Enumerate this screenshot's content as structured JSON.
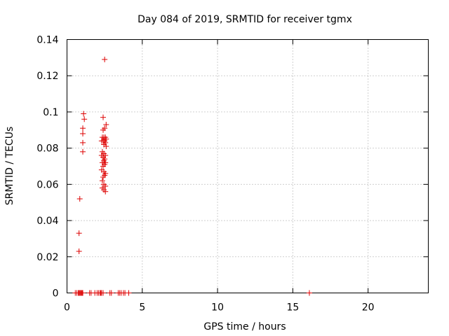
{
  "chart_data": {
    "type": "scatter",
    "title": "Day 084 of 2019, SRMTID for receiver tgmx",
    "xlabel": "GPS time / hours",
    "ylabel": "SRMTID / TECUs",
    "xlim": [
      0,
      24
    ],
    "ylim": [
      0,
      0.14
    ],
    "xticks": [
      0,
      5,
      10,
      15,
      20
    ],
    "xtick_labels": [
      "0",
      "5",
      "10",
      "15",
      "20"
    ],
    "yticks": [
      0,
      0.02,
      0.04,
      0.06,
      0.08,
      0.1,
      0.12,
      0.14
    ],
    "ytick_labels": [
      "0",
      "0.02",
      "0.04",
      "0.06",
      "0.08",
      "0.1",
      "0.12",
      "0.14"
    ],
    "grid": true,
    "marker": "+",
    "color": "#dd0000",
    "series": [
      {
        "points": [
          [
            0.55,
            0
          ],
          [
            0.65,
            0
          ],
          [
            0.75,
            0
          ],
          [
            0.8,
            0
          ],
          [
            0.85,
            0
          ],
          [
            0.9,
            0
          ],
          [
            0.95,
            0
          ],
          [
            1.0,
            0
          ],
          [
            1.05,
            0
          ],
          [
            1.5,
            0
          ],
          [
            1.6,
            0
          ],
          [
            1.85,
            0
          ],
          [
            2.0,
            0
          ],
          [
            2.1,
            0
          ],
          [
            2.2,
            0
          ],
          [
            2.25,
            0
          ],
          [
            2.3,
            0
          ],
          [
            2.4,
            0
          ],
          [
            2.85,
            0
          ],
          [
            2.95,
            0
          ],
          [
            3.4,
            0
          ],
          [
            3.5,
            0
          ],
          [
            3.6,
            0
          ],
          [
            3.75,
            0
          ],
          [
            3.85,
            0
          ],
          [
            4.1,
            0
          ],
          [
            16.1,
            0
          ],
          [
            0.8,
            0.023
          ],
          [
            0.8,
            0.033
          ],
          [
            0.85,
            0.052
          ],
          [
            1.05,
            0.078
          ],
          [
            1.05,
            0.083
          ],
          [
            1.05,
            0.088
          ],
          [
            1.05,
            0.091
          ],
          [
            1.15,
            0.096
          ],
          [
            1.1,
            0.099
          ],
          [
            2.5,
            0.129
          ],
          [
            2.4,
            0.097
          ],
          [
            2.6,
            0.093
          ],
          [
            2.5,
            0.091
          ],
          [
            2.4,
            0.09
          ],
          [
            2.35,
            0.086
          ],
          [
            2.45,
            0.086
          ],
          [
            2.55,
            0.086
          ],
          [
            2.6,
            0.085
          ],
          [
            2.3,
            0.084
          ],
          [
            2.4,
            0.084
          ],
          [
            2.5,
            0.084
          ],
          [
            2.55,
            0.083
          ],
          [
            2.45,
            0.082
          ],
          [
            2.6,
            0.081
          ],
          [
            2.35,
            0.078
          ],
          [
            2.45,
            0.077
          ],
          [
            2.3,
            0.076
          ],
          [
            2.55,
            0.076
          ],
          [
            2.4,
            0.075
          ],
          [
            2.5,
            0.074
          ],
          [
            2.45,
            0.073
          ],
          [
            2.35,
            0.072
          ],
          [
            2.55,
            0.072
          ],
          [
            2.5,
            0.071
          ],
          [
            2.4,
            0.07
          ],
          [
            2.3,
            0.068
          ],
          [
            2.45,
            0.067
          ],
          [
            2.55,
            0.066
          ],
          [
            2.5,
            0.065
          ],
          [
            2.4,
            0.064
          ],
          [
            2.35,
            0.062
          ],
          [
            2.45,
            0.06
          ],
          [
            2.55,
            0.059
          ],
          [
            2.35,
            0.058
          ],
          [
            2.45,
            0.057
          ],
          [
            2.55,
            0.056
          ]
        ]
      }
    ]
  }
}
